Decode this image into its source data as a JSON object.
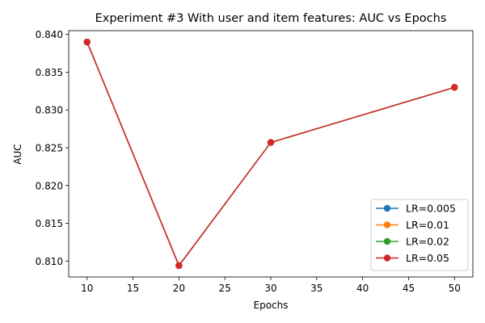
{
  "chart_data": {
    "type": "line",
    "title": "Experiment #3 With user and item features: AUC vs Epochs",
    "xlabel": "Epochs",
    "ylabel": "AUC",
    "x": [
      10,
      20,
      30,
      50
    ],
    "xlim": [
      8,
      52
    ],
    "ylim": [
      0.8079,
      0.8405
    ],
    "xticks": [
      10,
      15,
      20,
      25,
      30,
      35,
      40,
      45,
      50
    ],
    "yticks": [
      0.81,
      0.815,
      0.82,
      0.825,
      0.83,
      0.835,
      0.84
    ],
    "ytick_labels": [
      "0.810",
      "0.815",
      "0.820",
      "0.825",
      "0.830",
      "0.835",
      "0.840"
    ],
    "series": [
      {
        "name": "LR=0.005",
        "color": "#1f77b4",
        "values": [
          0.839,
          0.8094,
          0.8257,
          0.833
        ]
      },
      {
        "name": "LR=0.01",
        "color": "#ff7f0e",
        "values": [
          0.839,
          0.8094,
          0.8257,
          0.833
        ]
      },
      {
        "name": "LR=0.02",
        "color": "#2ca02c",
        "values": [
          0.839,
          0.8094,
          0.8257,
          0.833
        ]
      },
      {
        "name": "LR=0.05",
        "color": "#d62728",
        "values": [
          0.839,
          0.8094,
          0.8257,
          0.833
        ]
      }
    ],
    "legend": "lower-right",
    "grid": false
  }
}
